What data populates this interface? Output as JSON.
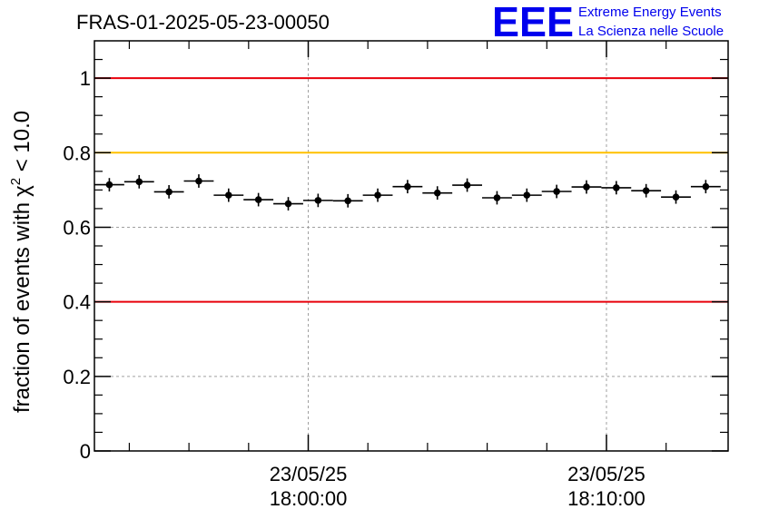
{
  "header": {
    "run_title": "FRAS-01-2025-05-23-00050",
    "logo_text": "EEE",
    "logo_line1": "Extreme Energy Events",
    "logo_line2": "La Scienza nelle Scuole"
  },
  "chart_data": {
    "type": "scatter",
    "title": "FRAS-01-2025-05-23-00050",
    "xlabel": "",
    "ylabel": "fraction of events with",
    "ylabel_chi": "χ",
    "ylabel_sup": "2",
    "ylabel_tail": " < 10.0",
    "ylim": [
      0,
      1.1
    ],
    "xlim_minutes": [
      0,
      21.25
    ],
    "x_unit": "minutes after 17:52:50",
    "grid": true,
    "y_ticks": [
      0,
      0.2,
      0.4,
      0.6,
      0.8,
      1
    ],
    "y_tick_labels": [
      "0",
      "0.2",
      "0.4",
      "0.6",
      "0.8",
      "1"
    ],
    "x_ticks_minutes": [
      7.17,
      17.17
    ],
    "x_tick_labels": [
      {
        "date": "23/05/25",
        "time": "18:00:00"
      },
      {
        "date": "23/05/25",
        "time": "18:10:00"
      }
    ],
    "x_minor_ticks_minutes": [
      1.17,
      3.17,
      5.17,
      9.17,
      11.17,
      13.17,
      15.17,
      19.17
    ],
    "reference_lines": [
      {
        "name": "upper-limit",
        "y": 1.0,
        "color": "#e8000b"
      },
      {
        "name": "warning",
        "y": 0.8,
        "color": "#ffc000"
      },
      {
        "name": "lower-limit",
        "y": 0.4,
        "color": "#e8000b"
      }
    ],
    "bin_width_minutes": 1.0,
    "x": [
      0.5,
      1.5,
      2.5,
      3.5,
      4.5,
      5.5,
      6.5,
      7.5,
      8.5,
      9.5,
      10.5,
      11.5,
      12.5,
      13.5,
      14.5,
      15.5,
      16.5,
      17.5,
      18.5,
      19.5,
      20.5
    ],
    "values": [
      0.714,
      0.722,
      0.695,
      0.724,
      0.686,
      0.674,
      0.663,
      0.672,
      0.671,
      0.686,
      0.709,
      0.692,
      0.713,
      0.679,
      0.686,
      0.696,
      0.708,
      0.706,
      0.698,
      0.681,
      0.709
    ],
    "errors": [
      0.018,
      0.018,
      0.018,
      0.018,
      0.018,
      0.018,
      0.018,
      0.018,
      0.018,
      0.018,
      0.018,
      0.018,
      0.018,
      0.018,
      0.018,
      0.018,
      0.018,
      0.018,
      0.018,
      0.018,
      0.018
    ]
  },
  "colors": {
    "axis": "#000000",
    "grid": "#a0a0a0",
    "marker": "#000000",
    "logo": "#0000ee"
  }
}
